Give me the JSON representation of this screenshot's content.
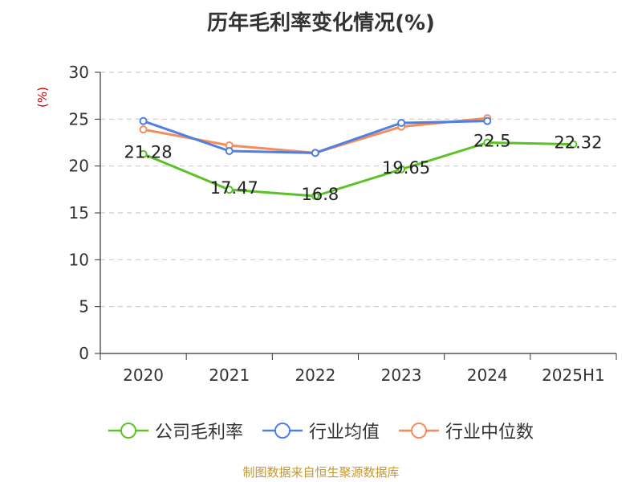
{
  "chart_data": {
    "type": "line",
    "title": "历年毛利率变化情况(%)",
    "ylabel": "(%)",
    "xlabel": "",
    "categories": [
      "2020",
      "2021",
      "2022",
      "2023",
      "2024",
      "2025H1"
    ],
    "ylim": [
      0,
      30
    ],
    "yticks": [
      0,
      5,
      10,
      15,
      20,
      25,
      30
    ],
    "grid": true,
    "legend_position": "bottom",
    "series": [
      {
        "name": "公司毛利率",
        "color": "#5bc225",
        "values": [
          21.28,
          17.47,
          16.8,
          19.65,
          22.5,
          22.32
        ],
        "show_labels": true
      },
      {
        "name": "行业均值",
        "color": "#4f7fe0",
        "values": [
          24.8,
          21.6,
          21.4,
          24.6,
          24.8,
          null
        ],
        "show_labels": false
      },
      {
        "name": "行业中位数",
        "color": "#f58c5a",
        "values": [
          23.9,
          22.2,
          21.4,
          24.2,
          25.1,
          null
        ],
        "show_labels": false
      }
    ]
  },
  "source_note": "制图数据来自恒生聚源数据库"
}
